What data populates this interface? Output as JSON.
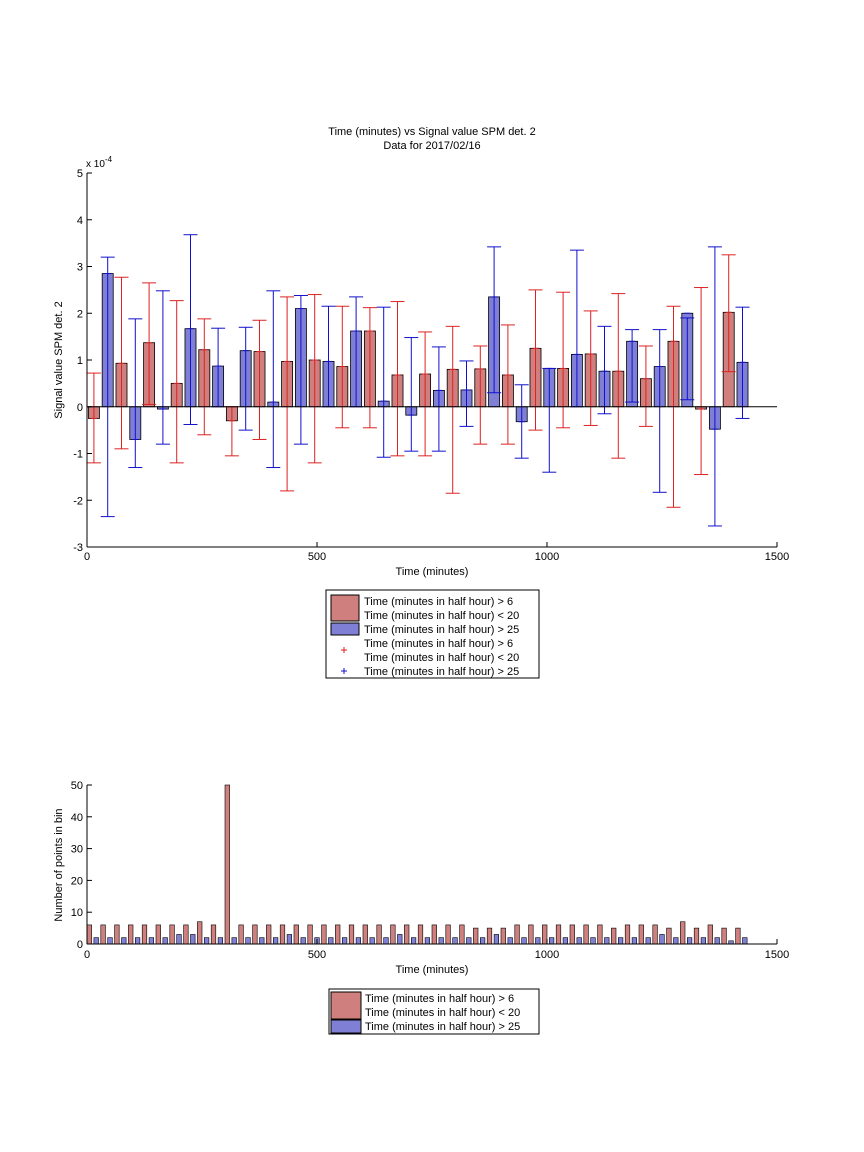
{
  "colors": {
    "red_fill": "#cf7f7d",
    "blue_fill": "#7f7fd6",
    "red_err": "#dd2222",
    "blue_err": "#1111cc",
    "axis": "#000000"
  },
  "chart_data": [
    {
      "type": "bar",
      "title": "Time (minutes) vs Signal value SPM det. 2",
      "subtitle": "Data for 2017/02/16",
      "xlabel": "Time (minutes)",
      "ylabel": "Signal value SPM det. 2",
      "y_exponent_label": "x 10",
      "y_exponent_sup": "-4",
      "xlim": [
        0,
        1500
      ],
      "ylim": [
        -3,
        5
      ],
      "xticks": [
        0,
        500,
        1000,
        1500
      ],
      "yticks": [
        -3,
        -2,
        -1,
        0,
        1,
        2,
        3,
        4,
        5
      ],
      "grid": false,
      "legend_position": "below",
      "legend": [
        {
          "kind": "patch",
          "color": "red",
          "lines": [
            "Time (minutes in half hour) > 6",
            "Time (minutes in half hour) < 20"
          ]
        },
        {
          "kind": "patch",
          "color": "blue",
          "lines": [
            "Time (minutes in half hour) > 25"
          ]
        },
        {
          "kind": "marker",
          "color": "red",
          "lines": [
            "Time (minutes in half hour) > 6",
            "Time (minutes in half hour) < 20"
          ]
        },
        {
          "kind": "marker",
          "color": "blue",
          "lines": [
            "Time (minutes in half hour) > 25"
          ]
        }
      ],
      "series": [
        {
          "x": [
            15,
            75,
            135,
            195,
            255,
            315,
            375,
            435,
            495,
            555,
            615,
            675,
            735,
            795,
            855,
            915,
            975,
            1035,
            1095,
            1155,
            1215,
            1275,
            1335,
            1395
          ],
          "values": [
            -0.25,
            0.93,
            1.37,
            0.5,
            1.22,
            -0.3,
            1.18,
            0.97,
            1.0,
            0.86,
            1.62,
            0.68,
            0.7,
            0.8,
            0.81,
            0.68,
            1.25,
            0.82,
            1.13,
            0.76,
            0.6,
            1.4,
            -0.05,
            2.02
          ],
          "lo": [
            -1.2,
            -0.9,
            0.05,
            -1.2,
            -0.6,
            -1.05,
            -0.7,
            -1.8,
            -1.2,
            -0.45,
            -0.45,
            -1.05,
            -1.05,
            -1.85,
            -0.8,
            -0.8,
            -0.5,
            -0.45,
            -0.4,
            -1.1,
            -0.42,
            -2.15,
            -1.45,
            0.75
          ],
          "hi": [
            0.72,
            2.77,
            2.65,
            2.27,
            1.88,
            0.0,
            1.85,
            2.35,
            2.4,
            2.15,
            2.12,
            2.25,
            1.6,
            1.72,
            1.3,
            1.75,
            2.5,
            2.45,
            2.05,
            2.42,
            1.3,
            2.15,
            2.55,
            3.25
          ]
        },
        {
          "x": [
            45,
            105,
            165,
            225,
            285,
            345,
            405,
            465,
            525,
            585,
            645,
            705,
            765,
            825,
            885,
            945,
            1005,
            1065,
            1125,
            1185,
            1245,
            1305,
            1365,
            1425
          ],
          "values": [
            2.85,
            -0.7,
            -0.05,
            1.67,
            0.87,
            1.2,
            0.1,
            2.1,
            0.97,
            1.62,
            0.12,
            -0.18,
            0.35,
            0.36,
            2.35,
            -0.32,
            0.82,
            1.12,
            0.76,
            1.4,
            0.86,
            2.0,
            -0.48,
            0.95
          ],
          "lo": [
            -2.35,
            -1.3,
            -0.8,
            -0.38,
            0.0,
            -0.5,
            -1.3,
            -0.8,
            0.0,
            0.0,
            -1.08,
            -0.95,
            -0.95,
            -0.42,
            0.3,
            -1.1,
            -1.4,
            0.0,
            -0.15,
            0.1,
            -1.83,
            0.15,
            -2.55,
            -0.25
          ],
          "hi": [
            3.2,
            1.88,
            2.48,
            3.68,
            1.68,
            1.7,
            2.48,
            2.38,
            2.15,
            2.35,
            2.13,
            1.48,
            1.28,
            0.98,
            3.42,
            0.47,
            0.82,
            3.35,
            1.72,
            1.65,
            1.65,
            1.9,
            3.42,
            2.13
          ]
        },
        {
          "x": [
            15,
            45,
            75,
            105,
            135,
            165,
            195,
            225,
            255,
            285,
            315,
            345,
            375,
            405,
            435,
            465,
            495,
            525,
            555,
            585,
            615,
            645,
            675,
            705,
            735,
            765,
            795,
            825,
            855,
            885,
            915,
            945,
            975,
            1005,
            1035,
            1065,
            1095,
            1125,
            1155,
            1185,
            1215,
            1245,
            1275,
            1305,
            1335,
            1365,
            1395,
            1425
          ],
          "values": [
            -0.25,
            2.85,
            0.93,
            -0.7,
            1.37,
            -0.05,
            0.5,
            1.67,
            1.22,
            0.87,
            -0.3,
            1.2,
            1.18,
            0.1,
            0.97,
            2.1,
            1.0,
            0.97,
            0.86,
            1.62,
            1.62,
            0.12,
            0.68,
            -0.18,
            0.7,
            0.35,
            0.8,
            0.36,
            0.81,
            2.35,
            0.68,
            -0.32,
            1.25,
            0.82,
            0.82,
            1.12,
            1.13,
            0.76,
            0.76,
            1.4,
            0.6,
            0.86,
            1.4,
            2.0,
            -0.05,
            -0.48,
            2.02,
            0.95
          ]
        }
      ],
      "notes": "series[0] = red bars (> 6 / < 20) with red error bars lo..hi; series[1] = blue bars (> 25) with blue error bars lo..hi; series[2] = combined values (1e-4 units)"
    },
    {
      "type": "bar",
      "xlabel": "Time (minutes)",
      "ylabel": "Number of points in bin",
      "xlim": [
        0,
        1500
      ],
      "ylim": [
        0,
        50
      ],
      "xticks": [
        0,
        500,
        1000,
        1500
      ],
      "yticks": [
        0,
        10,
        20,
        30,
        40,
        50
      ],
      "grid": false,
      "legend_position": "below",
      "legend": [
        {
          "kind": "patch",
          "color": "red",
          "lines": [
            "Time (minutes in half hour) > 6",
            "Time (minutes in half hour) < 20"
          ]
        },
        {
          "kind": "patch",
          "color": "blue",
          "lines": [
            "Time (minutes in half hour) > 25"
          ]
        }
      ],
      "series": [
        {
          "x": [
            5,
            35,
            65,
            95,
            125,
            155,
            185,
            215,
            245,
            275,
            305,
            335,
            365,
            395,
            425,
            455,
            485,
            515,
            545,
            575,
            605,
            635,
            665,
            695,
            725,
            755,
            785,
            815,
            845,
            875,
            905,
            935,
            965,
            995,
            1025,
            1055,
            1085,
            1115,
            1145,
            1175,
            1205,
            1235,
            1265,
            1295,
            1325,
            1355,
            1385,
            1415
          ],
          "values": [
            6,
            6,
            6,
            6,
            6,
            6,
            6,
            6,
            7,
            6,
            50,
            6,
            6,
            6,
            6,
            6,
            6,
            6,
            6,
            6,
            6,
            6,
            6,
            6,
            6,
            6,
            6,
            6,
            5,
            5,
            5,
            6,
            6,
            6,
            6,
            6,
            6,
            6,
            5,
            6,
            6,
            6,
            5,
            7,
            5,
            6,
            5,
            5
          ]
        },
        {
          "x": [
            20,
            50,
            80,
            110,
            140,
            170,
            200,
            230,
            260,
            290,
            320,
            350,
            380,
            410,
            440,
            470,
            500,
            530,
            560,
            590,
            620,
            650,
            680,
            710,
            740,
            770,
            800,
            830,
            860,
            890,
            920,
            950,
            980,
            1010,
            1040,
            1070,
            1100,
            1130,
            1160,
            1190,
            1220,
            1250,
            1280,
            1310,
            1340,
            1370,
            1400,
            1430
          ],
          "values": [
            2,
            2,
            2,
            2,
            2,
            2,
            3,
            3,
            2,
            2,
            2,
            2,
            2,
            2,
            3,
            2,
            2,
            2,
            2,
            2,
            2,
            2,
            3,
            2,
            2,
            2,
            2,
            2,
            2,
            3,
            2,
            2,
            2,
            2,
            2,
            2,
            2,
            2,
            2,
            2,
            2,
            3,
            2,
            2,
            2,
            2,
            1,
            2
          ]
        }
      ]
    }
  ]
}
